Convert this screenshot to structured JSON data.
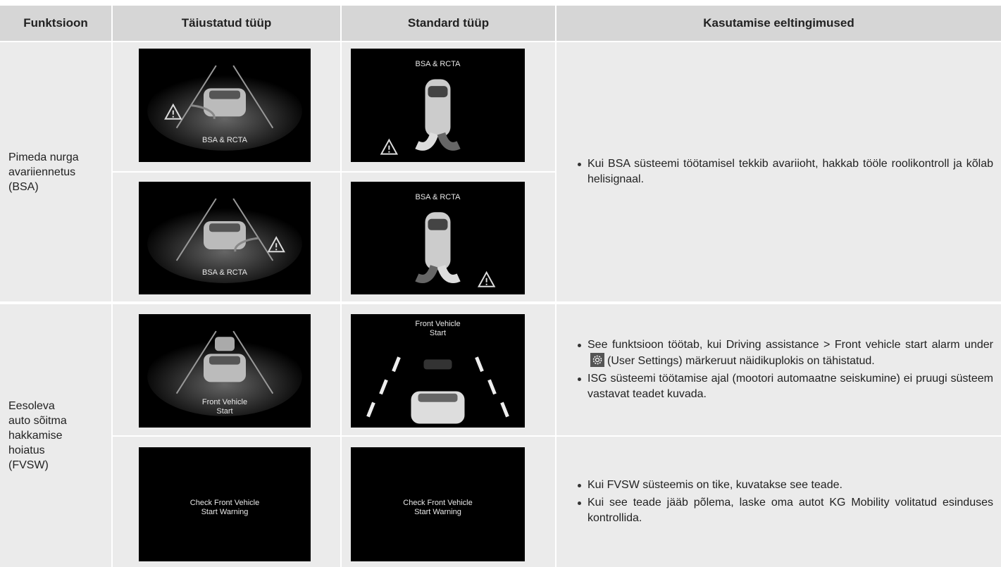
{
  "table": {
    "header": [
      "Funktsioon",
      "Täiustatud tüüp",
      "Standard tüüp",
      "Kasutamise eeltingimused"
    ],
    "rows": [
      {
        "function": [
          "Pimeda nurga",
          "avariiennetus",
          "(BSA)"
        ],
        "subrows": [
          {
            "advanced": [
              "BSA & RCTA"
            ],
            "standard": [
              "BSA & RCTA"
            ]
          },
          {
            "advanced": [
              "BSA & RCTA"
            ],
            "standard": [
              "BSA & RCTA"
            ]
          }
        ],
        "conditions": [
          "Kui BSA süsteemi töötamisel tekkib avariioht, hakkab tööle roolikontroll ja kõlab helisignaal."
        ]
      },
      {
        "function": [
          "Eesoleva",
          "auto sõitma",
          "hakkamise",
          "hoiatus",
          "(FVSW)"
        ],
        "subrows": [
          {
            "advanced": [
              "Front Vehicle",
              "Start"
            ],
            "standard": [
              "Front Vehicle",
              "Start"
            ],
            "conditions": [
              {
                "before": "See funktsioon töötab, kui Driving assistance > Front vehicle start alarm under",
                "after": "(User Settings) märkeruut näidikuplokis on tähistatud."
              },
              "ISG süsteemi töötamise ajal (mootori automaatne seiskumine) ei pruugi süsteem vastavat teadet kuvada."
            ]
          },
          {
            "advanced": [
              "Check Front Vehicle",
              "Start Warning"
            ],
            "standard": [
              "Check Front Vehicle",
              "Start Warning"
            ],
            "conditions": [
              "Kui FVSW süsteemis on tike, kuvatakse see teade.",
              "Kui see teade jääb põlema, laske oma autot KG Mobility volitatud esinduses kontrollida."
            ]
          }
        ]
      }
    ]
  }
}
